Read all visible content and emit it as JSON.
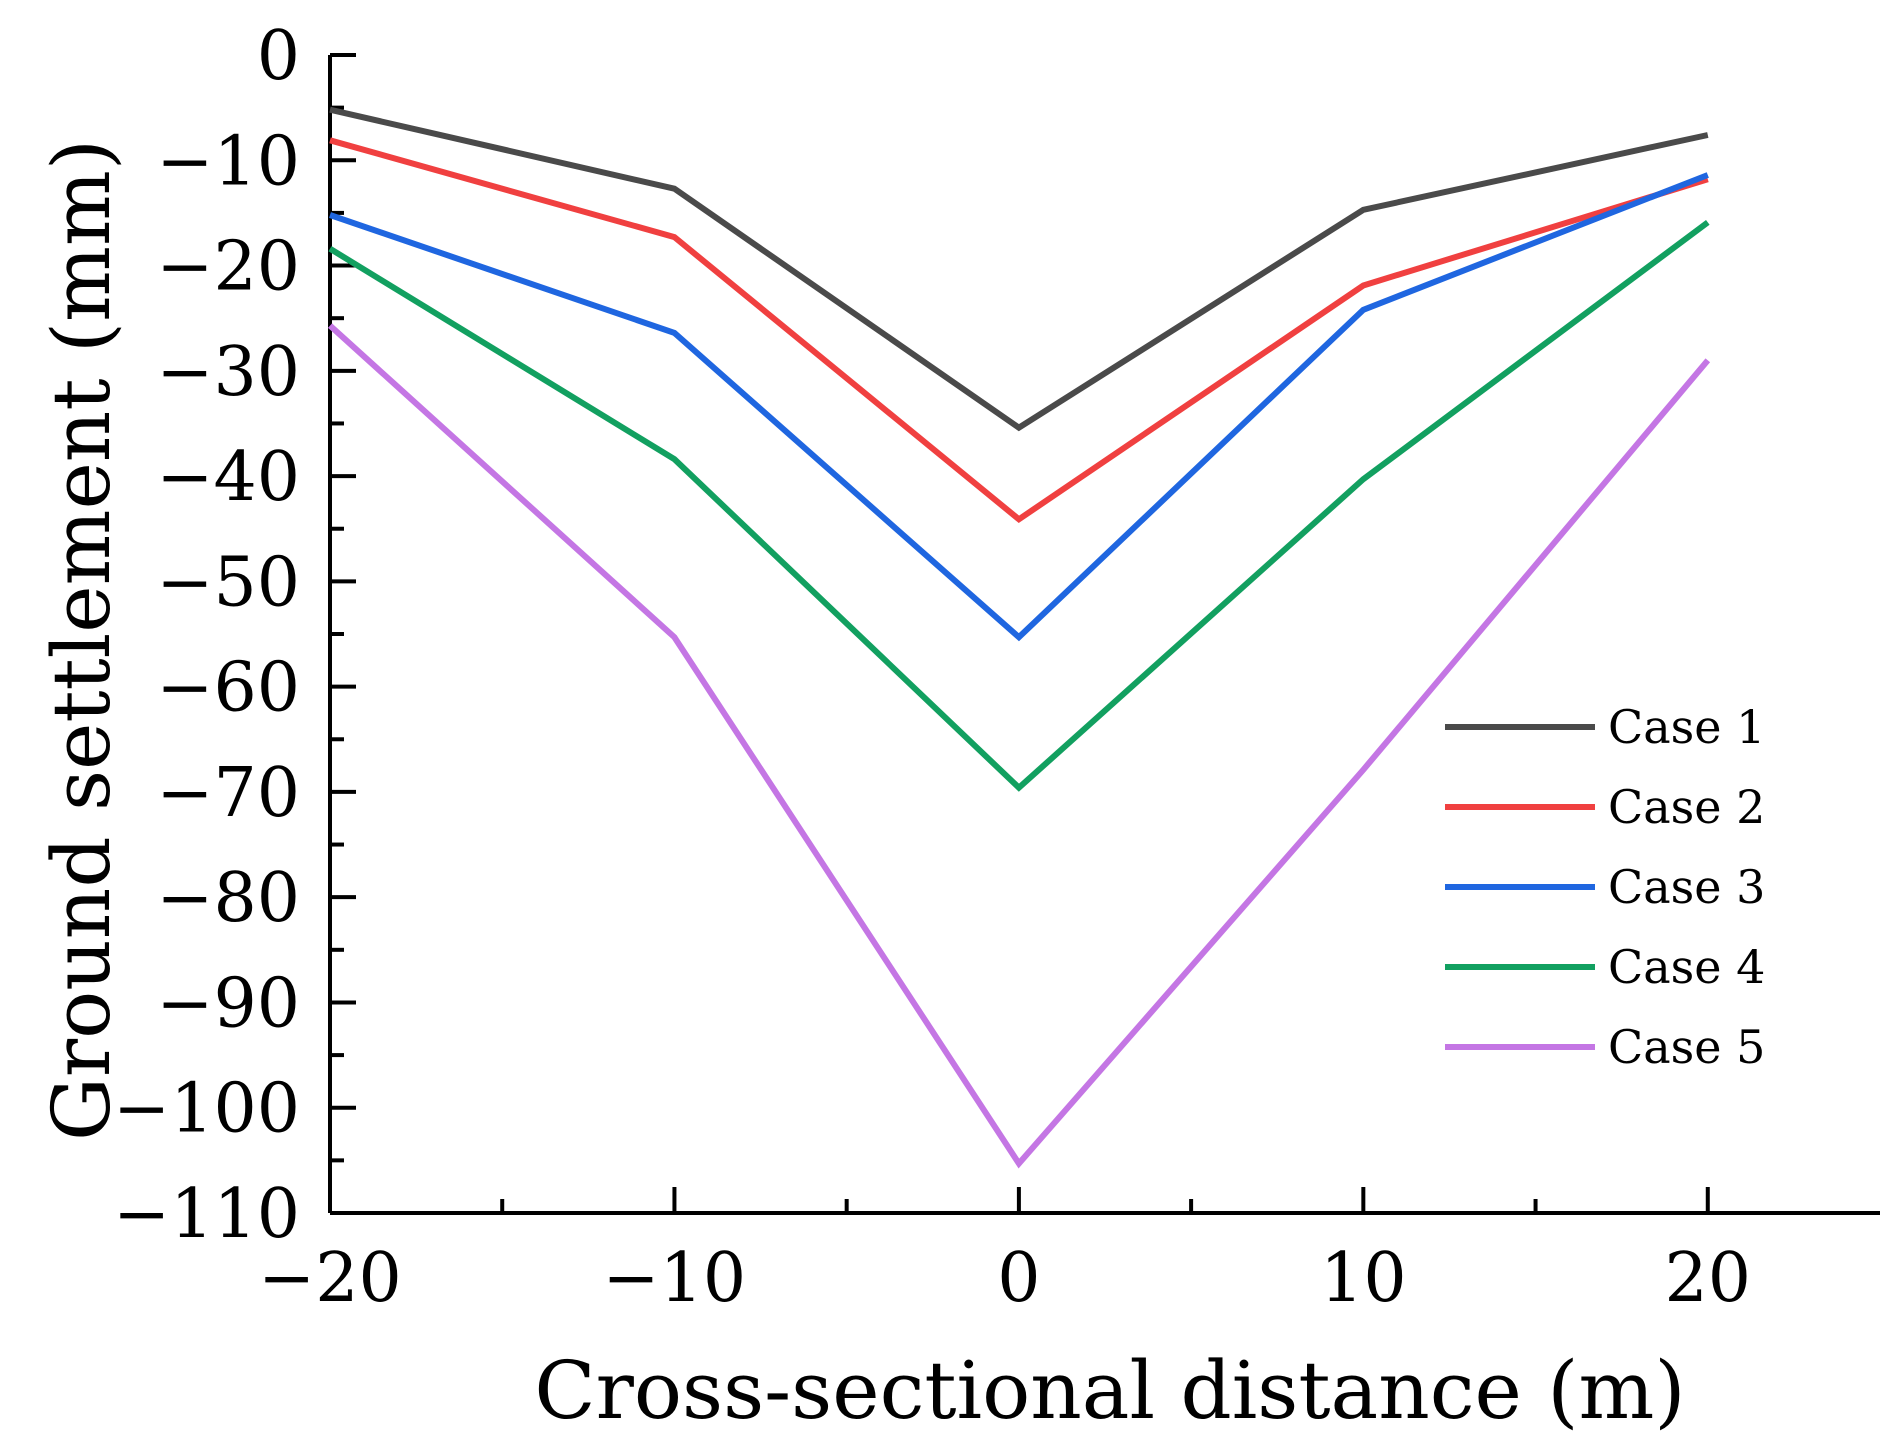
{
  "chart_data": {
    "type": "line",
    "title": "",
    "xlabel": "Cross-sectional distance (m)",
    "ylabel": "Ground settlement (mm)",
    "x": [
      -20,
      -10,
      0,
      10,
      20
    ],
    "xlim": [
      -20,
      25
    ],
    "ylim": [
      -110,
      0
    ],
    "x_ticks": [
      -20,
      -10,
      0,
      10,
      20
    ],
    "x_tick_labels": [
      "−20",
      "−10",
      "0",
      "10",
      "20"
    ],
    "y_ticks": [
      0,
      -10,
      -20,
      -30,
      -40,
      -50,
      -60,
      -70,
      -80,
      -90,
      -100,
      -110
    ],
    "y_tick_labels": [
      "0",
      "−10",
      "−20",
      "−30",
      "−40",
      "−50",
      "−60",
      "−70",
      "−80",
      "−90",
      "−100",
      "−110"
    ],
    "grid": false,
    "legend_position": "right",
    "series": [
      {
        "name": "Case 1",
        "color": "#4a4a4a",
        "values": [
          -5.2,
          -12.7,
          -35.4,
          -14.7,
          -7.6
        ]
      },
      {
        "name": "Case 2",
        "color": "#f04040",
        "values": [
          -8.1,
          -17.3,
          -44.1,
          -21.9,
          -11.8
        ]
      },
      {
        "name": "Case 3",
        "color": "#1f66e0",
        "values": [
          -15.2,
          -26.4,
          -55.3,
          -24.2,
          -11.4
        ]
      },
      {
        "name": "Case 4",
        "color": "#12a060",
        "values": [
          -18.4,
          -38.4,
          -69.6,
          -40.3,
          -15.9
        ]
      },
      {
        "name": "Case 5",
        "color": "#c476e4",
        "values": [
          -25.7,
          -55.3,
          -105.3,
          -67.9,
          -29.0
        ]
      }
    ]
  }
}
